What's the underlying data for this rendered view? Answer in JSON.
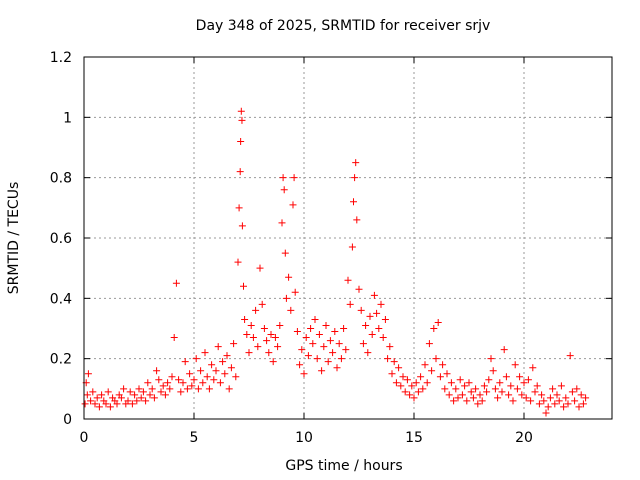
{
  "chart_data": {
    "type": "scatter",
    "title": "Day 348 of 2025, SRMTID for receiver srjv",
    "xlabel": "GPS time / hours",
    "ylabel": "SRMTID / TECUs",
    "xlim": [
      0,
      24
    ],
    "ylim": [
      0,
      1.2
    ],
    "grid": true,
    "marker": "+",
    "color": "#ff0000",
    "x_ticks": [
      0,
      5,
      10,
      15,
      20
    ],
    "x_tick_labels": [
      "0",
      "5",
      "10",
      "15",
      "20"
    ],
    "y_ticks": [
      0,
      0.2,
      0.4,
      0.6,
      0.8,
      1.0,
      1.2
    ],
    "y_tick_labels": [
      "0",
      "0.2",
      "0.4",
      "0.6",
      "0.8",
      "1",
      "1.2"
    ],
    "series": [
      {
        "name": "srjv",
        "points": [
          [
            0.05,
            0.05
          ],
          [
            0.1,
            0.12
          ],
          [
            0.15,
            0.08
          ],
          [
            0.2,
            0.15
          ],
          [
            0.3,
            0.06
          ],
          [
            0.4,
            0.09
          ],
          [
            0.5,
            0.05
          ],
          [
            0.6,
            0.07
          ],
          [
            0.7,
            0.04
          ],
          [
            0.8,
            0.08
          ],
          [
            0.9,
            0.06
          ],
          [
            1.0,
            0.05
          ],
          [
            1.1,
            0.09
          ],
          [
            1.2,
            0.04
          ],
          [
            1.3,
            0.07
          ],
          [
            1.4,
            0.06
          ],
          [
            1.5,
            0.05
          ],
          [
            1.6,
            0.08
          ],
          [
            1.7,
            0.07
          ],
          [
            1.8,
            0.1
          ],
          [
            1.9,
            0.05
          ],
          [
            2.0,
            0.06
          ],
          [
            2.1,
            0.09
          ],
          [
            2.2,
            0.05
          ],
          [
            2.3,
            0.08
          ],
          [
            2.4,
            0.06
          ],
          [
            2.5,
            0.1
          ],
          [
            2.6,
            0.07
          ],
          [
            2.7,
            0.09
          ],
          [
            2.8,
            0.06
          ],
          [
            2.9,
            0.12
          ],
          [
            3.0,
            0.08
          ],
          [
            3.1,
            0.1
          ],
          [
            3.2,
            0.07
          ],
          [
            3.3,
            0.16
          ],
          [
            3.4,
            0.13
          ],
          [
            3.5,
            0.09
          ],
          [
            3.6,
            0.11
          ],
          [
            3.7,
            0.08
          ],
          [
            3.8,
            0.12
          ],
          [
            3.9,
            0.1
          ],
          [
            4.0,
            0.14
          ],
          [
            4.1,
            0.27
          ],
          [
            4.2,
            0.45
          ],
          [
            4.3,
            0.13
          ],
          [
            4.4,
            0.09
          ],
          [
            4.5,
            0.12
          ],
          [
            4.6,
            0.19
          ],
          [
            4.7,
            0.1
          ],
          [
            4.8,
            0.15
          ],
          [
            4.9,
            0.11
          ],
          [
            5.0,
            0.13
          ],
          [
            5.1,
            0.2
          ],
          [
            5.2,
            0.1
          ],
          [
            5.3,
            0.16
          ],
          [
            5.4,
            0.12
          ],
          [
            5.5,
            0.22
          ],
          [
            5.6,
            0.14
          ],
          [
            5.7,
            0.1
          ],
          [
            5.8,
            0.18
          ],
          [
            5.9,
            0.13
          ],
          [
            6.0,
            0.16
          ],
          [
            6.1,
            0.24
          ],
          [
            6.2,
            0.12
          ],
          [
            6.3,
            0.19
          ],
          [
            6.4,
            0.15
          ],
          [
            6.5,
            0.21
          ],
          [
            6.6,
            0.1
          ],
          [
            6.7,
            0.17
          ],
          [
            6.8,
            0.25
          ],
          [
            6.9,
            0.14
          ],
          [
            7.0,
            0.52
          ],
          [
            7.05,
            0.7
          ],
          [
            7.1,
            0.82
          ],
          [
            7.12,
            0.92
          ],
          [
            7.15,
            1.02
          ],
          [
            7.18,
            0.99
          ],
          [
            7.2,
            0.64
          ],
          [
            7.25,
            0.44
          ],
          [
            7.3,
            0.33
          ],
          [
            7.4,
            0.28
          ],
          [
            7.5,
            0.22
          ],
          [
            7.6,
            0.31
          ],
          [
            7.7,
            0.27
          ],
          [
            7.8,
            0.36
          ],
          [
            7.9,
            0.24
          ],
          [
            8.0,
            0.5
          ],
          [
            8.1,
            0.38
          ],
          [
            8.2,
            0.3
          ],
          [
            8.3,
            0.26
          ],
          [
            8.4,
            0.22
          ],
          [
            8.5,
            0.28
          ],
          [
            8.6,
            0.19
          ],
          [
            8.7,
            0.27
          ],
          [
            8.8,
            0.24
          ],
          [
            8.9,
            0.31
          ],
          [
            9.0,
            0.65
          ],
          [
            9.05,
            0.8
          ],
          [
            9.1,
            0.76
          ],
          [
            9.15,
            0.55
          ],
          [
            9.2,
            0.4
          ],
          [
            9.3,
            0.47
          ],
          [
            9.4,
            0.36
          ],
          [
            9.5,
            0.71
          ],
          [
            9.55,
            0.8
          ],
          [
            9.6,
            0.42
          ],
          [
            9.7,
            0.29
          ],
          [
            9.8,
            0.18
          ],
          [
            9.9,
            0.23
          ],
          [
            10.0,
            0.15
          ],
          [
            10.1,
            0.27
          ],
          [
            10.2,
            0.21
          ],
          [
            10.3,
            0.3
          ],
          [
            10.4,
            0.25
          ],
          [
            10.5,
            0.33
          ],
          [
            10.6,
            0.2
          ],
          [
            10.7,
            0.28
          ],
          [
            10.8,
            0.16
          ],
          [
            10.9,
            0.24
          ],
          [
            11.0,
            0.31
          ],
          [
            11.1,
            0.19
          ],
          [
            11.2,
            0.26
          ],
          [
            11.3,
            0.22
          ],
          [
            11.4,
            0.29
          ],
          [
            11.5,
            0.17
          ],
          [
            11.6,
            0.25
          ],
          [
            11.7,
            0.2
          ],
          [
            11.8,
            0.3
          ],
          [
            11.9,
            0.23
          ],
          [
            12.0,
            0.46
          ],
          [
            12.1,
            0.38
          ],
          [
            12.2,
            0.57
          ],
          [
            12.25,
            0.72
          ],
          [
            12.3,
            0.8
          ],
          [
            12.35,
            0.85
          ],
          [
            12.4,
            0.66
          ],
          [
            12.5,
            0.43
          ],
          [
            12.6,
            0.36
          ],
          [
            12.7,
            0.25
          ],
          [
            12.8,
            0.31
          ],
          [
            12.9,
            0.22
          ],
          [
            13.0,
            0.34
          ],
          [
            13.1,
            0.28
          ],
          [
            13.2,
            0.41
          ],
          [
            13.3,
            0.35
          ],
          [
            13.4,
            0.3
          ],
          [
            13.5,
            0.38
          ],
          [
            13.6,
            0.27
          ],
          [
            13.7,
            0.33
          ],
          [
            13.8,
            0.2
          ],
          [
            13.9,
            0.24
          ],
          [
            14.0,
            0.15
          ],
          [
            14.1,
            0.19
          ],
          [
            14.2,
            0.12
          ],
          [
            14.3,
            0.17
          ],
          [
            14.4,
            0.11
          ],
          [
            14.5,
            0.14
          ],
          [
            14.6,
            0.09
          ],
          [
            14.7,
            0.13
          ],
          [
            14.8,
            0.08
          ],
          [
            14.9,
            0.11
          ],
          [
            15.0,
            0.07
          ],
          [
            15.1,
            0.12
          ],
          [
            15.2,
            0.09
          ],
          [
            15.3,
            0.14
          ],
          [
            15.4,
            0.1
          ],
          [
            15.5,
            0.18
          ],
          [
            15.6,
            0.12
          ],
          [
            15.7,
            0.25
          ],
          [
            15.8,
            0.16
          ],
          [
            15.9,
            0.3
          ],
          [
            16.0,
            0.2
          ],
          [
            16.1,
            0.32
          ],
          [
            16.2,
            0.14
          ],
          [
            16.3,
            0.18
          ],
          [
            16.4,
            0.1
          ],
          [
            16.5,
            0.15
          ],
          [
            16.6,
            0.08
          ],
          [
            16.7,
            0.12
          ],
          [
            16.8,
            0.06
          ],
          [
            16.9,
            0.1
          ],
          [
            17.0,
            0.07
          ],
          [
            17.1,
            0.13
          ],
          [
            17.2,
            0.08
          ],
          [
            17.3,
            0.11
          ],
          [
            17.4,
            0.06
          ],
          [
            17.5,
            0.12
          ],
          [
            17.6,
            0.09
          ],
          [
            17.7,
            0.07
          ],
          [
            17.8,
            0.1
          ],
          [
            17.9,
            0.05
          ],
          [
            18.0,
            0.08
          ],
          [
            18.1,
            0.06
          ],
          [
            18.2,
            0.11
          ],
          [
            18.3,
            0.09
          ],
          [
            18.4,
            0.13
          ],
          [
            18.5,
            0.2
          ],
          [
            18.6,
            0.16
          ],
          [
            18.7,
            0.1
          ],
          [
            18.8,
            0.07
          ],
          [
            18.9,
            0.12
          ],
          [
            19.0,
            0.09
          ],
          [
            19.1,
            0.23
          ],
          [
            19.2,
            0.14
          ],
          [
            19.3,
            0.08
          ],
          [
            19.4,
            0.11
          ],
          [
            19.5,
            0.06
          ],
          [
            19.6,
            0.18
          ],
          [
            19.7,
            0.1
          ],
          [
            19.8,
            0.14
          ],
          [
            19.9,
            0.08
          ],
          [
            20.0,
            0.12
          ],
          [
            20.1,
            0.07
          ],
          [
            20.2,
            0.13
          ],
          [
            20.3,
            0.06
          ],
          [
            20.4,
            0.17
          ],
          [
            20.5,
            0.09
          ],
          [
            20.6,
            0.11
          ],
          [
            20.7,
            0.05
          ],
          [
            20.8,
            0.08
          ],
          [
            20.9,
            0.06
          ],
          [
            21.0,
            0.02
          ],
          [
            21.1,
            0.04
          ],
          [
            21.2,
            0.07
          ],
          [
            21.3,
            0.1
          ],
          [
            21.4,
            0.05
          ],
          [
            21.5,
            0.08
          ],
          [
            21.6,
            0.06
          ],
          [
            21.7,
            0.11
          ],
          [
            21.8,
            0.04
          ],
          [
            21.9,
            0.07
          ],
          [
            22.0,
            0.05
          ],
          [
            22.1,
            0.21
          ],
          [
            22.2,
            0.09
          ],
          [
            22.3,
            0.06
          ],
          [
            22.4,
            0.1
          ],
          [
            22.5,
            0.04
          ],
          [
            22.6,
            0.08
          ],
          [
            22.7,
            0.05
          ],
          [
            22.8,
            0.07
          ]
        ]
      }
    ]
  }
}
